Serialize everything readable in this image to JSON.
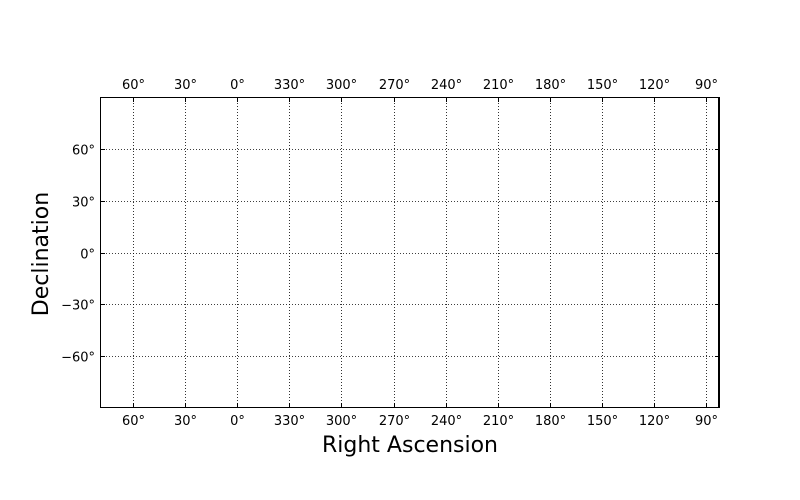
{
  "chart_data": {
    "type": "scatter",
    "title": "",
    "xlabel": "Right Ascension",
    "ylabel": "Declination",
    "x_ticks": [
      60,
      30,
      0,
      330,
      300,
      270,
      240,
      210,
      180,
      150,
      120,
      90
    ],
    "x_tick_labels": [
      "60°",
      "30°",
      "0°",
      "330°",
      "300°",
      "270°",
      "240°",
      "210°",
      "180°",
      "150°",
      "120°",
      "90°"
    ],
    "y_ticks": [
      60,
      30,
      0,
      -30,
      -60
    ],
    "y_tick_labels": [
      "60°",
      "30°",
      "0°",
      "−30°",
      "−60°"
    ],
    "xlim": [
      79,
      -278
    ],
    "ylim": [
      -90,
      90
    ],
    "x_inverted": true,
    "grid": true,
    "series": []
  }
}
